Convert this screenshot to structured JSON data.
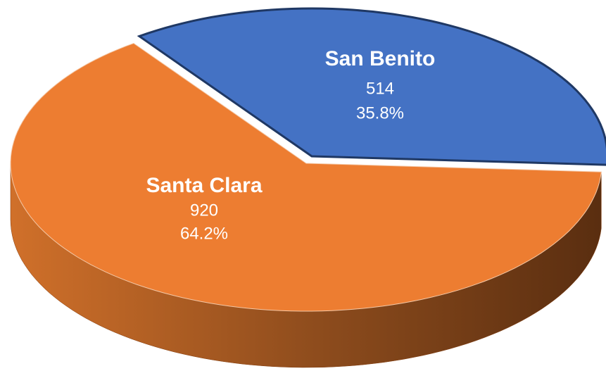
{
  "chart_data": {
    "type": "pie",
    "categories": [
      "San Benito",
      "Santa Clara"
    ],
    "values": [
      514,
      920
    ],
    "percent_labels": [
      "35.8%",
      "64.2%"
    ],
    "colors": [
      "#4472c4",
      "#ed7d31"
    ],
    "side_colors": [
      "#1f3864",
      "#843c0c"
    ]
  }
}
